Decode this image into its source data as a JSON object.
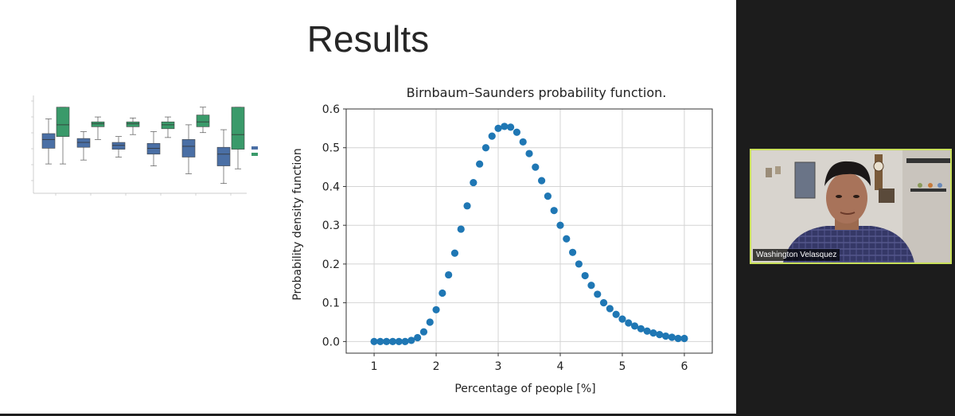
{
  "slide": {
    "title": "Results"
  },
  "video": {
    "participant_name": "Washington Velasquez",
    "border_color": "#c9e05a"
  },
  "chart_data": [
    {
      "type": "box",
      "title": "",
      "xlabel": "",
      "ylabel": "",
      "categories": [
        "",
        "",
        "",
        "",
        "",
        ""
      ],
      "legend_placement": "right",
      "series": [
        {
          "name": "",
          "color": "#4a6fa5"
        },
        {
          "name": "",
          "color": "#3a9a6a"
        }
      ]
    },
    {
      "type": "scatter",
      "title": "Birnbaum–Saunders probability function.",
      "xlabel": "Percentage of people [%]",
      "ylabel": "Probability density function",
      "xlim": [
        1,
        6
      ],
      "ylim": [
        0,
        0.6
      ],
      "xticks": [
        "1",
        "2",
        "3",
        "4",
        "5",
        "6"
      ],
      "yticks": [
        "0.0",
        "0.1",
        "0.2",
        "0.3",
        "0.4",
        "0.5",
        "0.6"
      ],
      "grid": true,
      "marker_color": "#1f77b4",
      "x": [
        1.0,
        1.1,
        1.2,
        1.3,
        1.4,
        1.5,
        1.6,
        1.7,
        1.8,
        1.9,
        2.0,
        2.1,
        2.2,
        2.3,
        2.4,
        2.5,
        2.6,
        2.7,
        2.8,
        2.9,
        3.0,
        3.1,
        3.2,
        3.3,
        3.4,
        3.5,
        3.6,
        3.7,
        3.8,
        3.9,
        4.0,
        4.1,
        4.2,
        4.3,
        4.4,
        4.5,
        4.6,
        4.7,
        4.8,
        4.9,
        5.0,
        5.1,
        5.2,
        5.3,
        5.4,
        5.5,
        5.6,
        5.7,
        5.8,
        5.9,
        6.0
      ],
      "y": [
        0.0,
        0.0,
        0.0,
        0.0,
        0.0,
        0.0,
        0.003,
        0.01,
        0.025,
        0.05,
        0.082,
        0.125,
        0.172,
        0.228,
        0.29,
        0.35,
        0.41,
        0.458,
        0.5,
        0.53,
        0.55,
        0.555,
        0.553,
        0.54,
        0.515,
        0.485,
        0.45,
        0.415,
        0.375,
        0.338,
        0.3,
        0.265,
        0.23,
        0.2,
        0.17,
        0.145,
        0.122,
        0.1,
        0.085,
        0.07,
        0.058,
        0.048,
        0.04,
        0.033,
        0.027,
        0.022,
        0.018,
        0.014,
        0.011,
        0.008,
        0.008
      ]
    }
  ]
}
